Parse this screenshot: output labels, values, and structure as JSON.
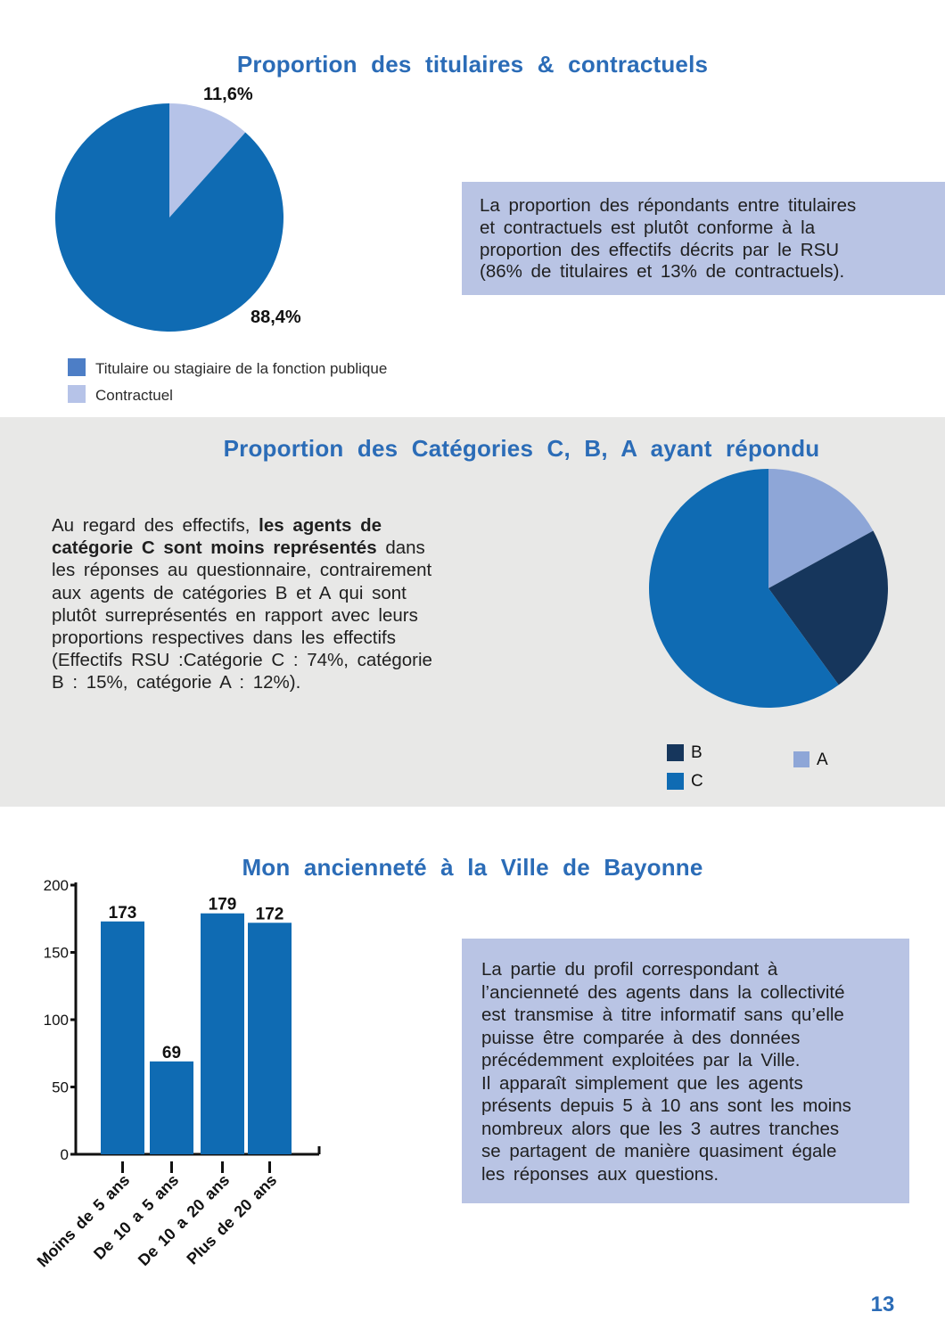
{
  "page": {
    "number": "13"
  },
  "colors": {
    "accent_blue": "#0f6bb3",
    "dark_navy": "#16365c",
    "periwinkle_a": "#8ea6d7",
    "light_periwinkle": "#b6c3e8",
    "legend_titulaire_blue": "#4d7ec6",
    "title_blue": "#2b6cb7",
    "note_box_bg": "#b9c4e4",
    "band_bg": "#e8e8e7"
  },
  "section_titulaires": {
    "title": "Proportion des titulaires & contractuels",
    "legend": [
      {
        "label": "Titulaire ou stagiaire de la fonction publique",
        "color": "#4d7ec6"
      },
      {
        "label": "Contractuel",
        "color": "#b6c3e8"
      }
    ],
    "note_lines": [
      "La proportion des répondants entre titulaires",
      "et contractuels est plutôt conforme à la",
      "proportion des effectifs décrits par le RSU",
      "(86% de titulaires et 13% de contractuels)."
    ]
  },
  "section_categories": {
    "title": "Proportion des Catégories C, B, A ayant répondu",
    "paragraph_lines": [
      {
        "pre": "Au regard des effectifs, ",
        "bold": "les agents de"
      },
      {
        "bold": "catégorie C sont moins représentés",
        "post": " dans"
      },
      {
        "pre": "les réponses au questionnaire, contrairement"
      },
      {
        "pre": "aux agents de catégories B et A qui sont"
      },
      {
        "pre": "plutôt surreprésentés en rapport avec leurs"
      },
      {
        "pre": "proportions respectives dans les effectifs"
      },
      {
        "pre": "(Effectifs RSU :Catégorie C : 74%, catégorie"
      },
      {
        "pre": "B : 15%, catégorie A : 12%)."
      }
    ],
    "legend": [
      {
        "label": "B",
        "color": "#16365c"
      },
      {
        "label": "C",
        "color": "#0f6bb3"
      },
      {
        "label": "A",
        "color": "#8ea6d7"
      }
    ]
  },
  "section_anciennete": {
    "title": "Mon ancienneté à la Ville de Bayonne",
    "note_lines": [
      "La partie du profil correspondant à",
      "l’ancienneté des agents dans la collectivité",
      "est transmise à titre informatif sans qu’elle",
      "puisse être comparée à des données",
      "précédemment exploitées par la Ville.",
      "Il apparaît simplement que les agents",
      "présents depuis 5 à 10 ans sont les moins",
      "nombreux alors que les 3 autres tranches",
      "se partagent de manière quasiment égale",
      "les réponses aux questions."
    ]
  },
  "chart_data": [
    {
      "type": "pie",
      "title": "Proportion des titulaires & contractuels",
      "labels": [
        "Contractuel",
        "Titulaire ou stagiaire de la fonction publique"
      ],
      "values": [
        11.6,
        88.4
      ],
      "slice_labels": [
        "11,6%",
        "88,4%"
      ],
      "colors": [
        "#b6c3e8",
        "#0f6bb3"
      ],
      "start": "top",
      "direction": "clockwise",
      "legend_position": "bottom-left"
    },
    {
      "type": "pie",
      "title": "Proportion des Catégories C, B, A ayant répondu",
      "labels": [
        "A",
        "B",
        "C"
      ],
      "values": [
        17,
        23,
        60
      ],
      "colors": [
        "#8ea6d7",
        "#16365c",
        "#0f6bb3"
      ],
      "start": "top",
      "direction": "clockwise",
      "legend_position": "bottom"
    },
    {
      "type": "bar",
      "title": "Mon ancienneté à la Ville de Bayonne",
      "categories": [
        "Moins de 5 ans",
        "De 10 a 5 ans",
        "De 10 a 20 ans",
        "Plus de 20 ans"
      ],
      "values": [
        173,
        69,
        179,
        172
      ],
      "ylim": [
        0,
        200
      ],
      "yticks": [
        0,
        50,
        100,
        150,
        200
      ],
      "bar_color": "#0f6bb3"
    }
  ]
}
